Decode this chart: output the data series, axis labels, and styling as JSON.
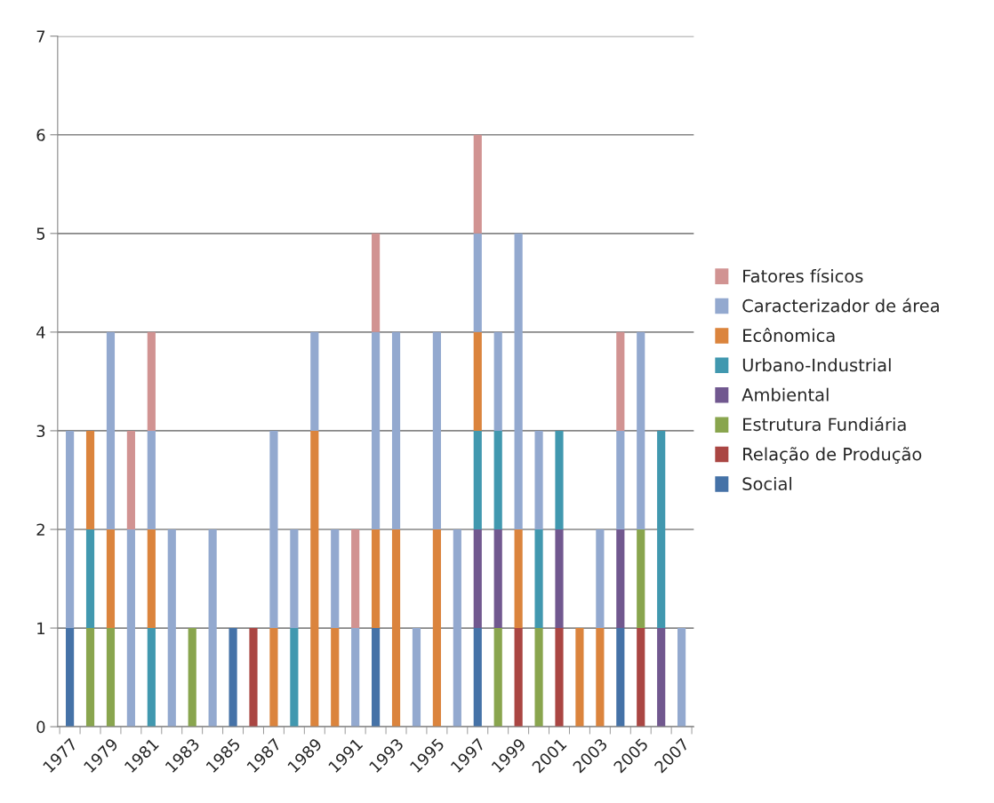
{
  "chart_data": {
    "type": "bar",
    "stacked": true,
    "categories": [
      "1977",
      null,
      "1979",
      null,
      "1981",
      null,
      "1983",
      null,
      "1985",
      null,
      "1987",
      null,
      "1989",
      null,
      "1991",
      null,
      "1993",
      null,
      "1995",
      null,
      "1997",
      null,
      "1999",
      null,
      "2001",
      null,
      "2003",
      null,
      "2005",
      null,
      "2007"
    ],
    "series": [
      {
        "name": "Social",
        "color": "#4572a7",
        "values": [
          1,
          0,
          0,
          0,
          0,
          0,
          0,
          0,
          1,
          0,
          0,
          0,
          0,
          0,
          0,
          1,
          0,
          0,
          0,
          0,
          1,
          0,
          0,
          0,
          0,
          0,
          0,
          1,
          0,
          0,
          0
        ]
      },
      {
        "name": "Relação de Produção",
        "color": "#aa4643",
        "values": [
          0,
          0,
          0,
          0,
          0,
          0,
          0,
          0,
          0,
          1,
          0,
          0,
          0,
          0,
          0,
          0,
          0,
          0,
          0,
          0,
          0,
          0,
          1,
          0,
          1,
          0,
          0,
          0,
          1,
          0,
          0
        ]
      },
      {
        "name": "Estrutura Fundiária",
        "color": "#89a54e",
        "values": [
          0,
          1,
          1,
          0,
          0,
          0,
          1,
          0,
          0,
          0,
          0,
          0,
          0,
          0,
          0,
          0,
          0,
          0,
          0,
          0,
          0,
          1,
          0,
          1,
          0,
          0,
          0,
          0,
          1,
          0,
          0
        ]
      },
      {
        "name": "Ambiental",
        "color": "#71588f",
        "values": [
          0,
          0,
          0,
          0,
          0,
          0,
          0,
          0,
          0,
          0,
          0,
          0,
          0,
          0,
          0,
          0,
          0,
          0,
          0,
          0,
          1,
          1,
          0,
          0,
          1,
          0,
          0,
          1,
          0,
          1,
          0
        ]
      },
      {
        "name": "Urbano-Industrial",
        "color": "#4198af",
        "values": [
          0,
          1,
          0,
          0,
          1,
          0,
          0,
          0,
          0,
          0,
          0,
          1,
          0,
          0,
          0,
          0,
          0,
          0,
          0,
          0,
          1,
          1,
          0,
          1,
          1,
          0,
          0,
          0,
          0,
          2,
          0
        ]
      },
      {
        "name": "Ecônomica",
        "color": "#db843d",
        "values": [
          0,
          1,
          1,
          0,
          1,
          0,
          0,
          0,
          0,
          0,
          1,
          0,
          3,
          1,
          0,
          1,
          2,
          0,
          2,
          0,
          1,
          0,
          1,
          0,
          0,
          1,
          1,
          0,
          0,
          0,
          0
        ]
      },
      {
        "name": "Caracterizador de área",
        "color": "#93a9cf",
        "values": [
          2,
          0,
          2,
          2,
          1,
          2,
          0,
          2,
          0,
          0,
          2,
          1,
          1,
          1,
          1,
          2,
          2,
          1,
          2,
          2,
          1,
          1,
          3,
          1,
          0,
          0,
          1,
          1,
          2,
          0,
          1
        ]
      },
      {
        "name": "Fatores físicos",
        "color": "#d19392",
        "values": [
          0,
          0,
          0,
          1,
          1,
          0,
          0,
          0,
          0,
          0,
          0,
          0,
          0,
          0,
          1,
          1,
          0,
          0,
          0,
          0,
          1,
          0,
          0,
          0,
          0,
          0,
          0,
          1,
          0,
          0,
          0
        ]
      }
    ],
    "ylim": [
      0,
      7
    ],
    "yticks": [
      0,
      1,
      2,
      3,
      4,
      5,
      6,
      7
    ],
    "grid": "y",
    "legend": "right"
  }
}
